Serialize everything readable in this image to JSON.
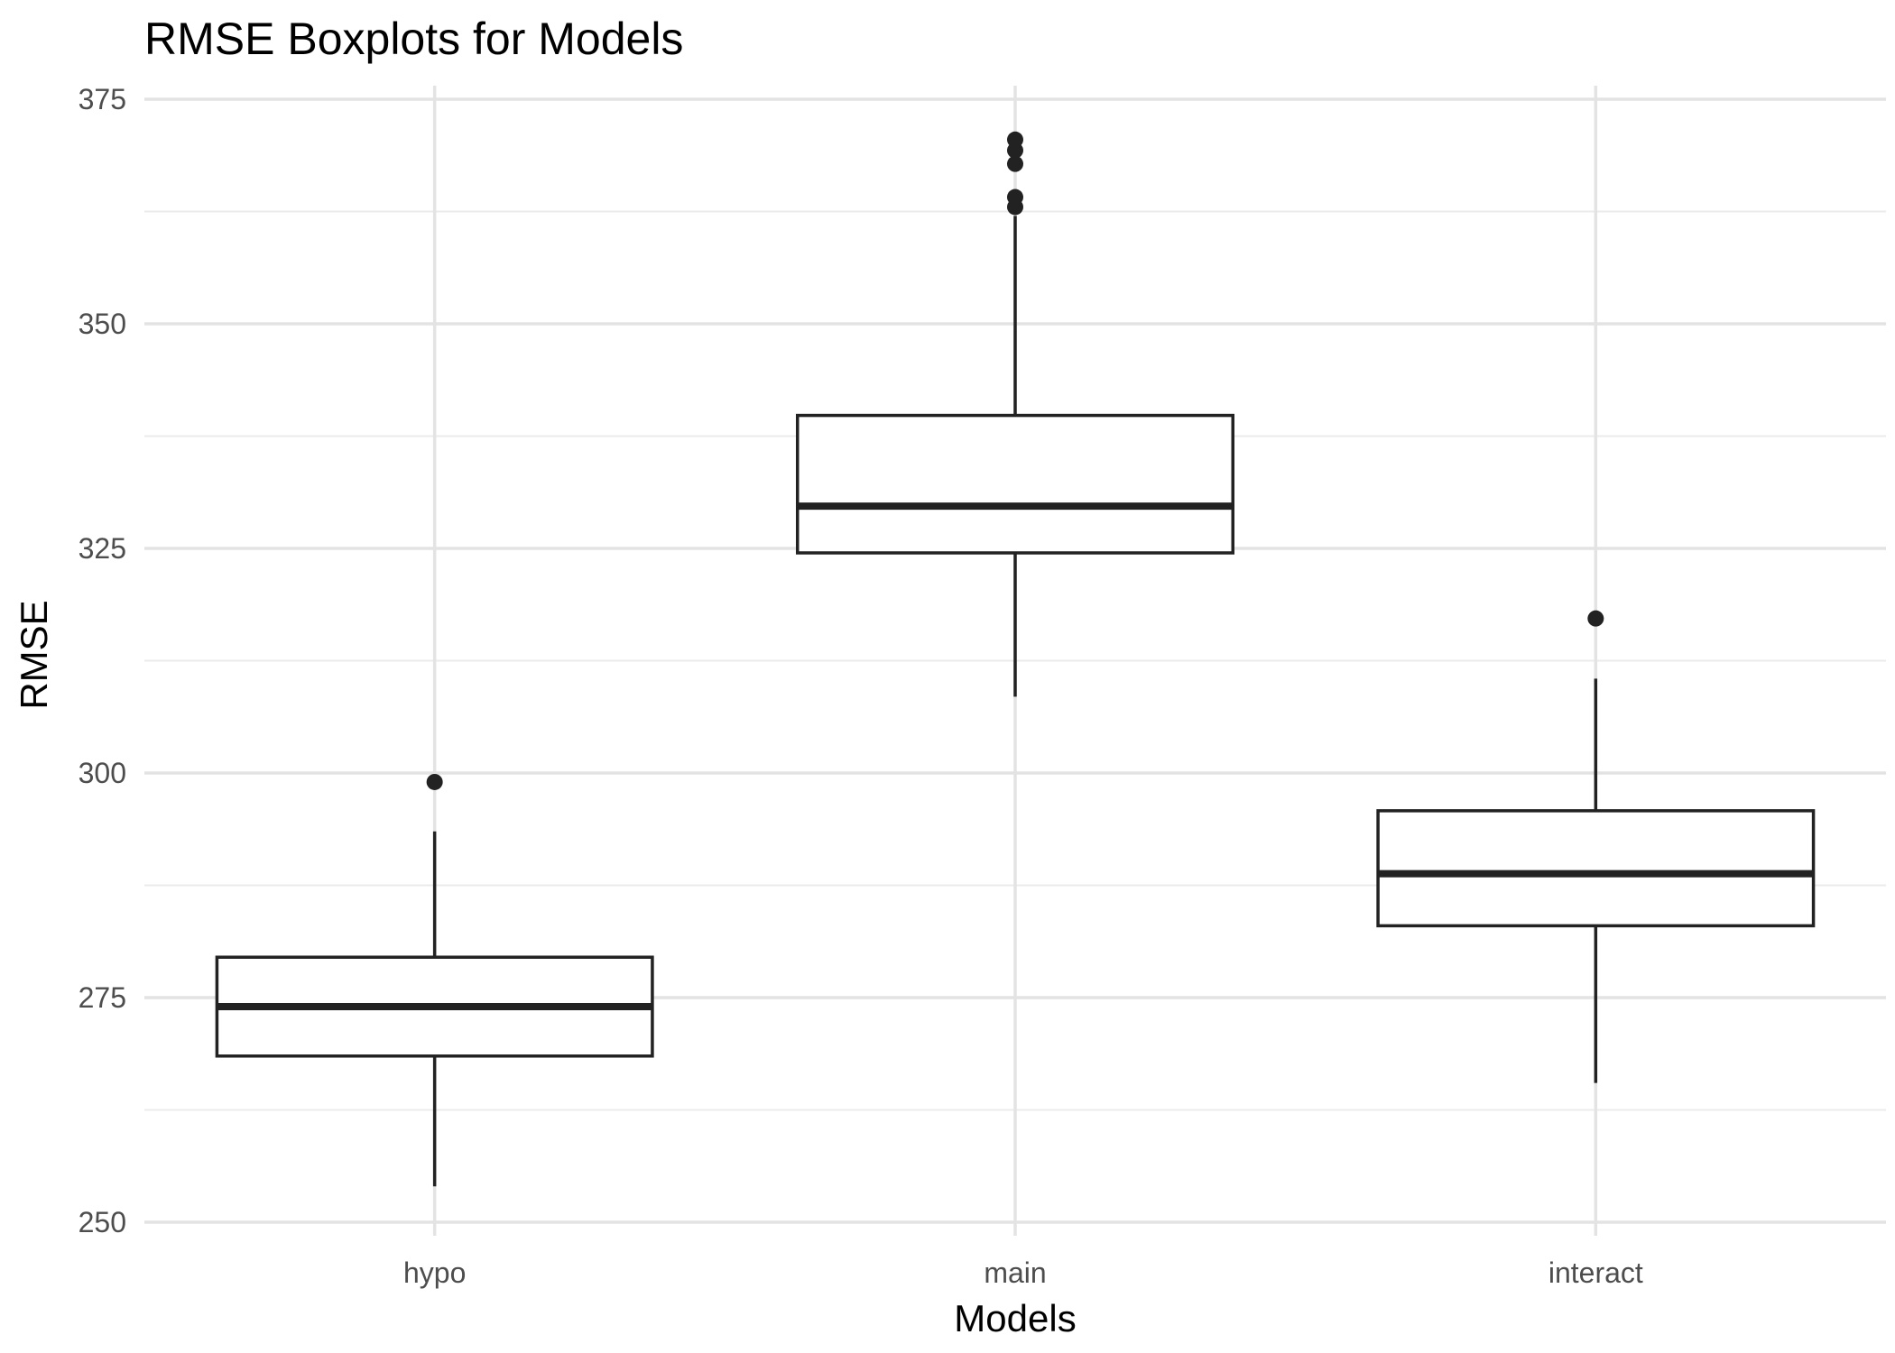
{
  "chart_data": {
    "type": "boxplot",
    "title": "RMSE Boxplots for Models",
    "xlabel": "Models",
    "ylabel": "RMSE",
    "ylim": [
      248.5,
      376.5
    ],
    "y_ticks": [
      250,
      275,
      300,
      325,
      350,
      375
    ],
    "y_tick_labels": [
      "250",
      "275",
      "300",
      "325",
      "350",
      "375"
    ],
    "grid": true,
    "legend": "none",
    "box_color": "#222222",
    "categories": [
      "hypo",
      "main",
      "interact"
    ],
    "boxes": [
      {
        "category": "hypo",
        "whisker_low": 254,
        "q1": 268.5,
        "median": 274,
        "q3": 279.5,
        "whisker_high": 293.5,
        "outliers": [
          299
        ]
      },
      {
        "category": "main",
        "whisker_low": 308.5,
        "q1": 324.5,
        "median": 329.7,
        "q3": 339.8,
        "whisker_high": 362,
        "outliers": [
          363,
          364.1,
          367.8,
          369.3,
          370.5
        ]
      },
      {
        "category": "interact",
        "whisker_low": 265.5,
        "q1": 283,
        "median": 288.8,
        "q3": 295.8,
        "whisker_high": 310.5,
        "outliers": [
          317.2
        ]
      }
    ]
  }
}
